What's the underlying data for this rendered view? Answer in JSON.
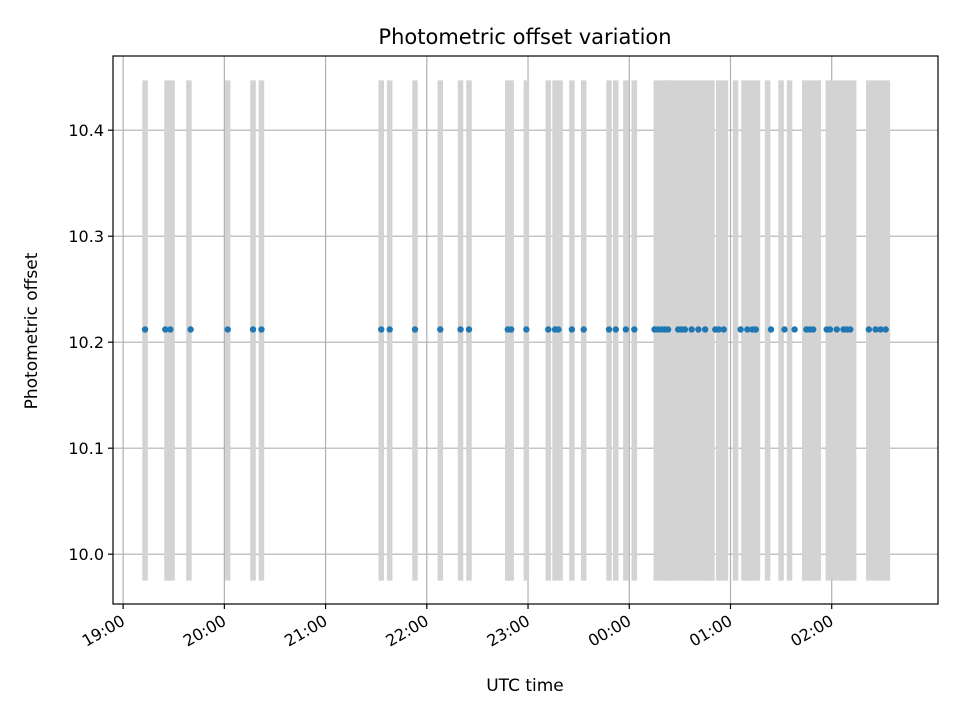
{
  "chart_data": {
    "type": "scatter",
    "title": "Photometric offset variation",
    "xlabel": "UTC time",
    "ylabel": "Photometric offset",
    "x_unit": "UTC time (HH:MM)",
    "xlim": [
      "18:54",
      "03:03"
    ],
    "ylim": [
      9.953,
      10.47
    ],
    "x_ticks": [
      "19:00",
      "20:00",
      "21:00",
      "22:00",
      "23:00",
      "00:00",
      "01:00",
      "02:00"
    ],
    "y_ticks": [
      10.0,
      10.1,
      10.2,
      10.3,
      10.4
    ],
    "grid": true,
    "colors": {
      "points": "#1f77b4",
      "bands": "#d3d3d3",
      "grid": "#b0b0b0"
    },
    "bands": {
      "y_range": [
        9.975,
        10.447
      ],
      "x": [
        "19:13",
        "19:26",
        "19:29",
        "19:39",
        "20:02",
        "20:17",
        "20:22",
        "21:33",
        "21:38",
        "21:53",
        "22:08",
        "22:20",
        "22:25",
        "22:48",
        "22:50",
        "22:59",
        "23:12",
        "23:16",
        "23:19",
        "23:26",
        "23:33",
        "23:48",
        "23:52",
        "23:58",
        "24:03",
        "24:16",
        "24:18",
        "24:21",
        "24:22",
        "24:24",
        "24:25",
        "24:28",
        "24:30",
        "24:32",
        "24:34",
        "24:37",
        "24:39",
        "24:42",
        "24:45",
        "24:47",
        "24:49",
        "24:53",
        "24:55",
        "24:57",
        "25:03",
        "25:08",
        "25:10",
        "25:12",
        "25:14",
        "25:16",
        "25:22",
        "25:30",
        "25:35",
        "25:44",
        "25:46",
        "25:48",
        "25:50",
        "25:52",
        "25:58",
        "26:00",
        "26:02",
        "26:05",
        "26:07",
        "26:09",
        "26:11",
        "26:13",
        "26:22",
        "26:25",
        "26:28",
        "26:30",
        "26:33"
      ]
    },
    "series": [
      {
        "x": [
          "19:13",
          "19:25",
          "19:28",
          "19:40",
          "20:02",
          "20:17",
          "20:22",
          "21:33",
          "21:38",
          "21:53",
          "22:08",
          "22:20",
          "22:25",
          "22:48",
          "22:50",
          "22:59",
          "23:12",
          "23:16",
          "23:18",
          "23:26",
          "23:33",
          "23:48",
          "23:52",
          "23:58",
          "24:03",
          "24:15",
          "24:17",
          "24:19",
          "24:21",
          "24:23",
          "24:29",
          "24:31",
          "24:33",
          "24:37",
          "24:41",
          "24:45",
          "24:51",
          "24:53",
          "24:56",
          "25:06",
          "25:10",
          "25:13",
          "25:15",
          "25:24",
          "25:32",
          "25:38",
          "25:45",
          "25:47",
          "25:49",
          "25:57",
          "25:59",
          "26:03",
          "26:07",
          "26:09",
          "26:11",
          "26:22",
          "26:26",
          "26:29",
          "26:32"
        ],
        "y": [
          10.212,
          10.212,
          10.212,
          10.212,
          10.212,
          10.212,
          10.212,
          10.212,
          10.212,
          10.212,
          10.212,
          10.212,
          10.212,
          10.212,
          10.212,
          10.212,
          10.212,
          10.212,
          10.212,
          10.212,
          10.212,
          10.212,
          10.212,
          10.212,
          10.212,
          10.212,
          10.212,
          10.212,
          10.212,
          10.212,
          10.212,
          10.212,
          10.212,
          10.212,
          10.212,
          10.212,
          10.212,
          10.212,
          10.212,
          10.212,
          10.212,
          10.212,
          10.212,
          10.212,
          10.212,
          10.212,
          10.212,
          10.212,
          10.212,
          10.212,
          10.212,
          10.212,
          10.212,
          10.212,
          10.212,
          10.212,
          10.212,
          10.212,
          10.212
        ]
      }
    ]
  }
}
